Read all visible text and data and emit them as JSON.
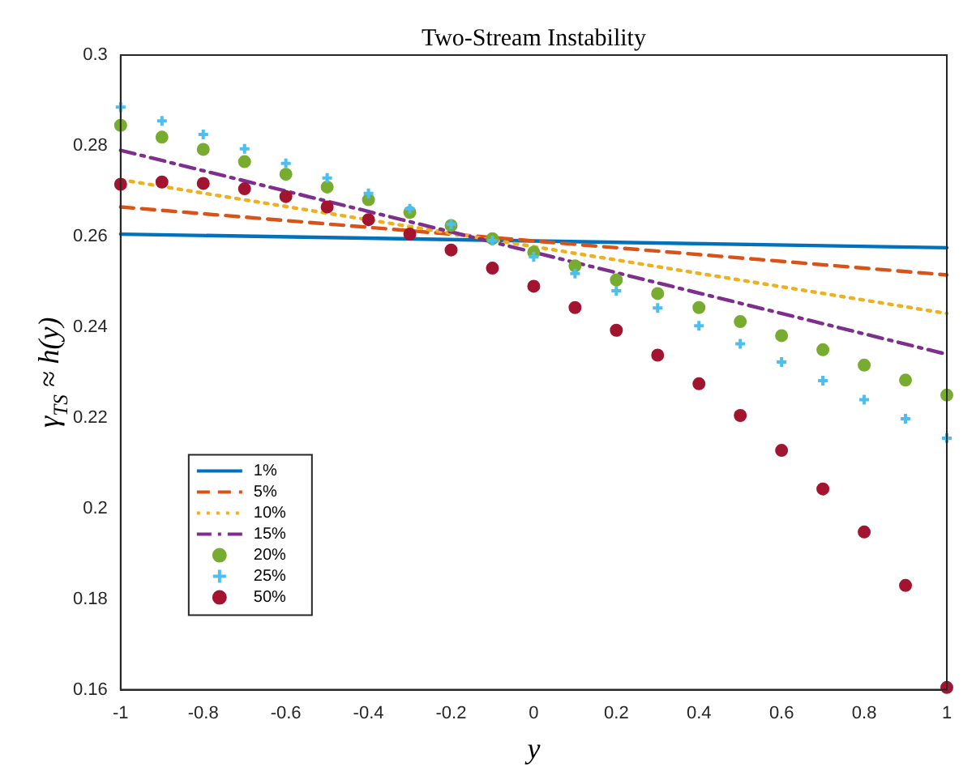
{
  "chart_data": {
    "type": "line",
    "title": "Two-Stream Instability",
    "xlabel": "y",
    "ylabel": "γ$_{TS}$ ≈ h(y)",
    "xlim": [
      -1,
      1
    ],
    "xticks": [
      -1,
      -0.8,
      -0.6,
      -0.4,
      -0.2,
      0,
      0.2,
      0.4,
      0.6,
      0.8,
      1
    ],
    "ylim": [
      0.16,
      0.3
    ],
    "yticks": [
      0.16,
      0.18,
      0.2,
      0.22,
      0.24,
      0.26,
      0.28,
      0.3
    ],
    "grid": false,
    "legend": "bottom left",
    "series": [
      {
        "name": "1%",
        "color": "#0072bd",
        "type": "line",
        "line_style": "solid",
        "marker": "none",
        "x": [
          -1,
          1
        ],
        "values": [
          0.2605,
          0.2575
        ]
      },
      {
        "name": "5%",
        "color": "#d95319",
        "type": "line",
        "line_style": "dashed",
        "marker": "none",
        "x": [
          -1,
          1
        ],
        "values": [
          0.2665,
          0.2515
        ]
      },
      {
        "name": "10%",
        "color": "#edb120",
        "type": "line",
        "line_style": "dotted",
        "marker": "none",
        "x": [
          -1,
          1
        ],
        "values": [
          0.2725,
          0.243
        ]
      },
      {
        "name": "15%",
        "color": "#7e2f8e",
        "type": "line",
        "line_style": "dashdot",
        "marker": "none",
        "x": [
          -1,
          1
        ],
        "values": [
          0.279,
          0.234
        ]
      },
      {
        "name": "20%",
        "color": "#77ac30",
        "type": "scatter",
        "marker": "circle",
        "x": [
          -1,
          -0.9,
          -0.8,
          -0.7,
          -0.6,
          -0.5,
          -0.4,
          -0.3,
          -0.2,
          -0.1,
          0,
          0.1,
          0.2,
          0.3,
          0.4,
          0.5,
          0.6,
          0.7,
          0.8,
          0.9,
          1
        ],
        "values": [
          0.2845,
          0.2819,
          0.2792,
          0.2765,
          0.2737,
          0.2709,
          0.2681,
          0.2653,
          0.2624,
          0.2595,
          0.2565,
          0.2535,
          0.2504,
          0.2474,
          0.2443,
          0.2412,
          0.2381,
          0.235,
          0.2316,
          0.2283,
          0.225
        ]
      },
      {
        "name": "25%",
        "color": "#4dbeee",
        "type": "scatter",
        "marker": "cross",
        "x": [
          -1,
          -0.9,
          -0.8,
          -0.7,
          -0.6,
          -0.5,
          -0.4,
          -0.3,
          -0.2,
          -0.1,
          0,
          0.1,
          0.2,
          0.3,
          0.4,
          0.5,
          0.6,
          0.7,
          0.8,
          0.9,
          1
        ],
        "values": [
          0.2885,
          0.2855,
          0.2825,
          0.2793,
          0.2761,
          0.2729,
          0.2695,
          0.2661,
          0.2627,
          0.2591,
          0.2555,
          0.2518,
          0.248,
          0.2442,
          0.2403,
          0.2363,
          0.2323,
          0.2282,
          0.224,
          0.2198,
          0.2155
        ]
      },
      {
        "name": "50%",
        "color": "#a2142f",
        "type": "scatter",
        "marker": "circle",
        "x": [
          -1,
          -0.9,
          -0.8,
          -0.7,
          -0.6,
          -0.5,
          -0.4,
          -0.3,
          -0.2,
          -0.1,
          0,
          0.1,
          0.2,
          0.3,
          0.4,
          0.5,
          0.6,
          0.7,
          0.8,
          0.9,
          1
        ],
        "values": [
          0.2715,
          0.272,
          0.2717,
          0.2705,
          0.2688,
          0.2665,
          0.2637,
          0.2605,
          0.257,
          0.253,
          0.249,
          0.2443,
          0.2393,
          0.2338,
          0.2275,
          0.2205,
          0.2128,
          0.2043,
          0.1948,
          0.183,
          0.1605
        ]
      }
    ]
  }
}
